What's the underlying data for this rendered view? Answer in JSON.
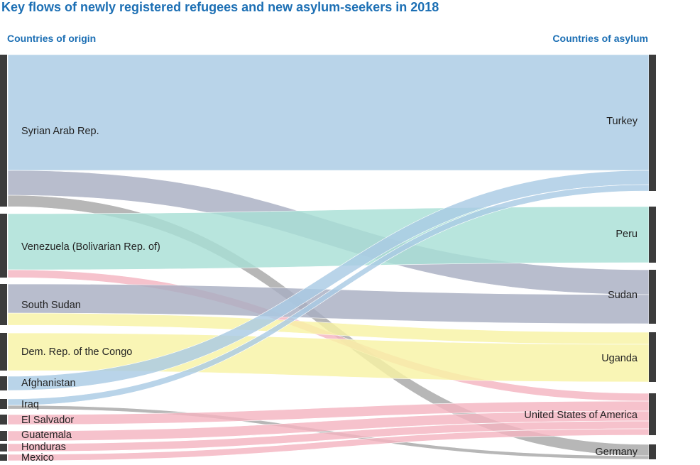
{
  "chart_data": {
    "type": "sankey",
    "title": "Key flows of newly registered refugees and new asylum-seekers in 2018",
    "left_header": "Countries of origin",
    "right_header": "Countries of asylum",
    "origins": [
      "Syrian Arab Rep.",
      "Venezuela (Bolivarian Rep. of)",
      "South Sudan",
      "Dem. Rep. of the Congo",
      "Afghanistan",
      "Iraq",
      "El Salvador",
      "Guatemala",
      "Honduras",
      "Mexico"
    ],
    "destinations": [
      "Turkey",
      "Peru",
      "Sudan",
      "Uganda",
      "United States of America",
      "Germany"
    ],
    "flows": [
      {
        "from": "Syrian Arab Rep.",
        "to": "Turkey",
        "value": 163
      },
      {
        "from": "Syrian Arab Rep.",
        "to": "Sudan",
        "value": 35
      },
      {
        "from": "Syrian Arab Rep.",
        "to": "Germany",
        "value": 16
      },
      {
        "from": "Venezuela (Bolivarian Rep. of)",
        "to": "Peru",
        "value": 79
      },
      {
        "from": "Venezuela (Bolivarian Rep. of)",
        "to": "United States of America",
        "value": 11
      },
      {
        "from": "South Sudan",
        "to": "Sudan",
        "value": 41
      },
      {
        "from": "South Sudan",
        "to": "Uganda",
        "value": 17
      },
      {
        "from": "Dem. Rep. of the Congo",
        "to": "Uganda",
        "value": 53
      },
      {
        "from": "Afghanistan",
        "to": "Turkey",
        "value": 20
      },
      {
        "from": "Iraq",
        "to": "Turkey",
        "value": 9
      },
      {
        "from": "Iraq",
        "to": "Germany",
        "value": 5
      },
      {
        "from": "El Salvador",
        "to": "United States of America",
        "value": 14
      },
      {
        "from": "Guatemala",
        "to": "United States of America",
        "value": 14
      },
      {
        "from": "Honduras",
        "to": "United States of America",
        "value": 11
      },
      {
        "from": "Mexico",
        "to": "United States of America",
        "value": 9
      }
    ],
    "colors": {
      "Syrian Arab Rep.->Turkey": "#a9cbe4",
      "Syrian Arab Rep.->Sudan": "#a8afc2",
      "Syrian Arab Rep.->Germany": "#a7a7a7",
      "Venezuela (Bolivarian Rep. of)->Peru": "#a8dfd5",
      "Venezuela (Bolivarian Rep. of)->United States of America": "#f4b4c1",
      "South Sudan->Sudan": "#a8afc2",
      "South Sudan->Uganda": "#f8f3a5",
      "Dem. Rep. of the Congo->Uganda": "#f8f3a5",
      "Afghanistan->Turkey": "#a9cbe4",
      "Iraq->Turkey": "#a9cbe4",
      "Iraq->Germany": "#a7a7a7",
      "El Salvador->United States of America": "#f4b4c1",
      "Guatemala->United States of America": "#f4b4c1",
      "Honduras->United States of America": "#f4b4c1",
      "Mexico->United States of America": "#f4b4c1",
      "title": "#1c6fb4",
      "node_bar": "#3c3c3c",
      "label": "#222222"
    }
  }
}
